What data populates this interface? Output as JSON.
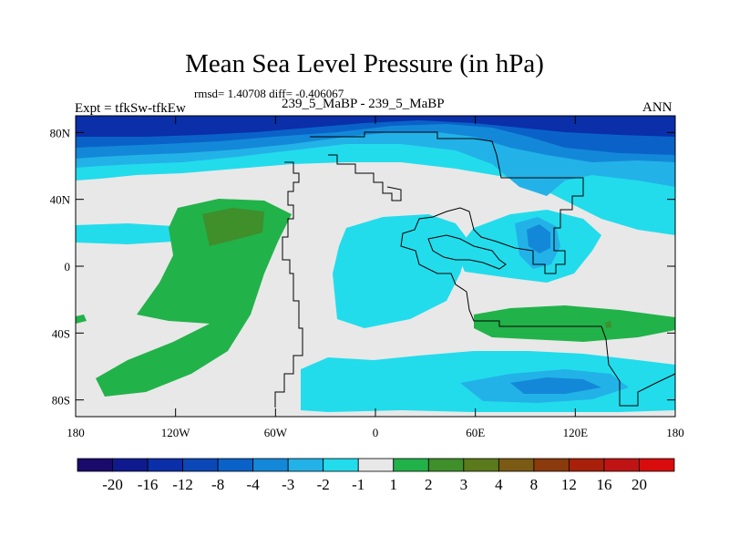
{
  "chart_data": {
    "type": "heatmap",
    "title": "Mean Sea Level Pressure (in hPa)",
    "stats_text": "rmsd= 1.40708 diff= -0.406067",
    "left_label": "Expt = tfkSw-tfkEw",
    "center_label": "239_5_MaBP - 239_5_MaBP",
    "right_label": "ANN",
    "x_range": [
      -180,
      180
    ],
    "y_range": [
      -90,
      90
    ],
    "x_ticks": [
      -180,
      -120,
      -60,
      0,
      60,
      120,
      180
    ],
    "x_tick_labels": [
      "180",
      "120W",
      "60W",
      "0",
      "60E",
      "120E",
      "180"
    ],
    "y_ticks": [
      -80,
      -40,
      0,
      40,
      80
    ],
    "y_tick_labels": [
      "80S",
      "40S",
      "0",
      "40N",
      "80N"
    ],
    "colorbar_labels": [
      "-20",
      "-16",
      "-12",
      "-8",
      "-4",
      "-3",
      "-2",
      "-1",
      "1",
      "2",
      "3",
      "4",
      "8",
      "12",
      "16",
      "20"
    ],
    "colorbar_colors": [
      "#1a0a6b",
      "#101a8f",
      "#0a2fa8",
      "#0c47b8",
      "#0a62c8",
      "#1488d8",
      "#22b2e8",
      "#22dcec",
      "#e8e8e8",
      "#22b24a",
      "#3f8f2b",
      "#5a7a1c",
      "#7a5a14",
      "#8a3a0c",
      "#a8200a",
      "#c01414",
      "#d80c0c"
    ],
    "fill_colors": {
      "background": "#e8e8e8",
      "minus_1": "#22dcec",
      "minus_2": "#22b2e8",
      "minus_3": "#1488d8",
      "minus_4": "#0a62c8",
      "minus_8": "#0a2fa8",
      "plus_1": "#22b24a",
      "plus_2": "#3f8f2b",
      "plus_3": "#5a7a1c"
    }
  }
}
